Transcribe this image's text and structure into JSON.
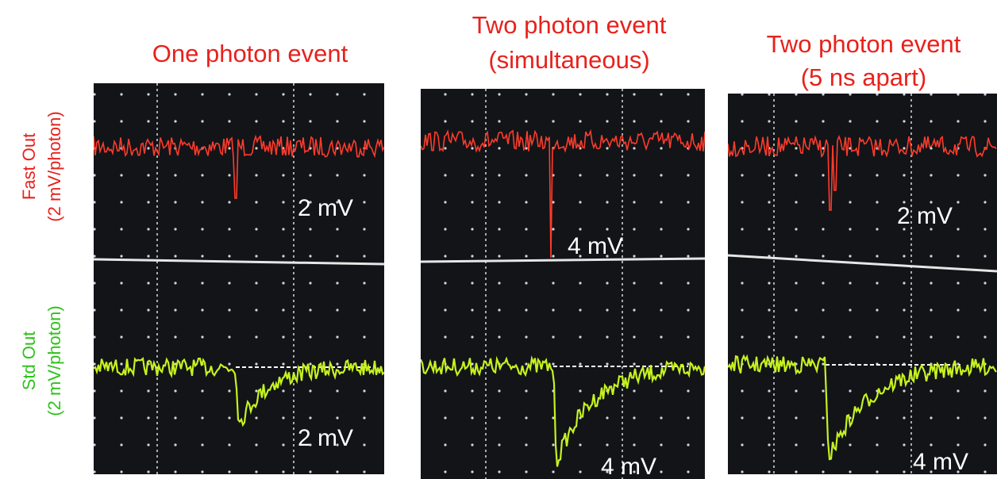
{
  "side_labels": {
    "fast": [
      "Fast Out",
      "(2 mV/photon)"
    ],
    "std": [
      "Std Out",
      "(2 mV/photon)"
    ]
  },
  "panels": [
    {
      "title": [
        "One photon event"
      ],
      "fast_label": "2 mV",
      "std_label": "2 mV"
    },
    {
      "title": [
        "Two photon event",
        "(simultaneous)"
      ],
      "fast_label": "4 mV",
      "std_label": "4 mV"
    },
    {
      "title": [
        "Two photon event",
        "(5 ns apart)"
      ],
      "fast_label": "2 mV",
      "std_label": "4 mV"
    }
  ]
}
